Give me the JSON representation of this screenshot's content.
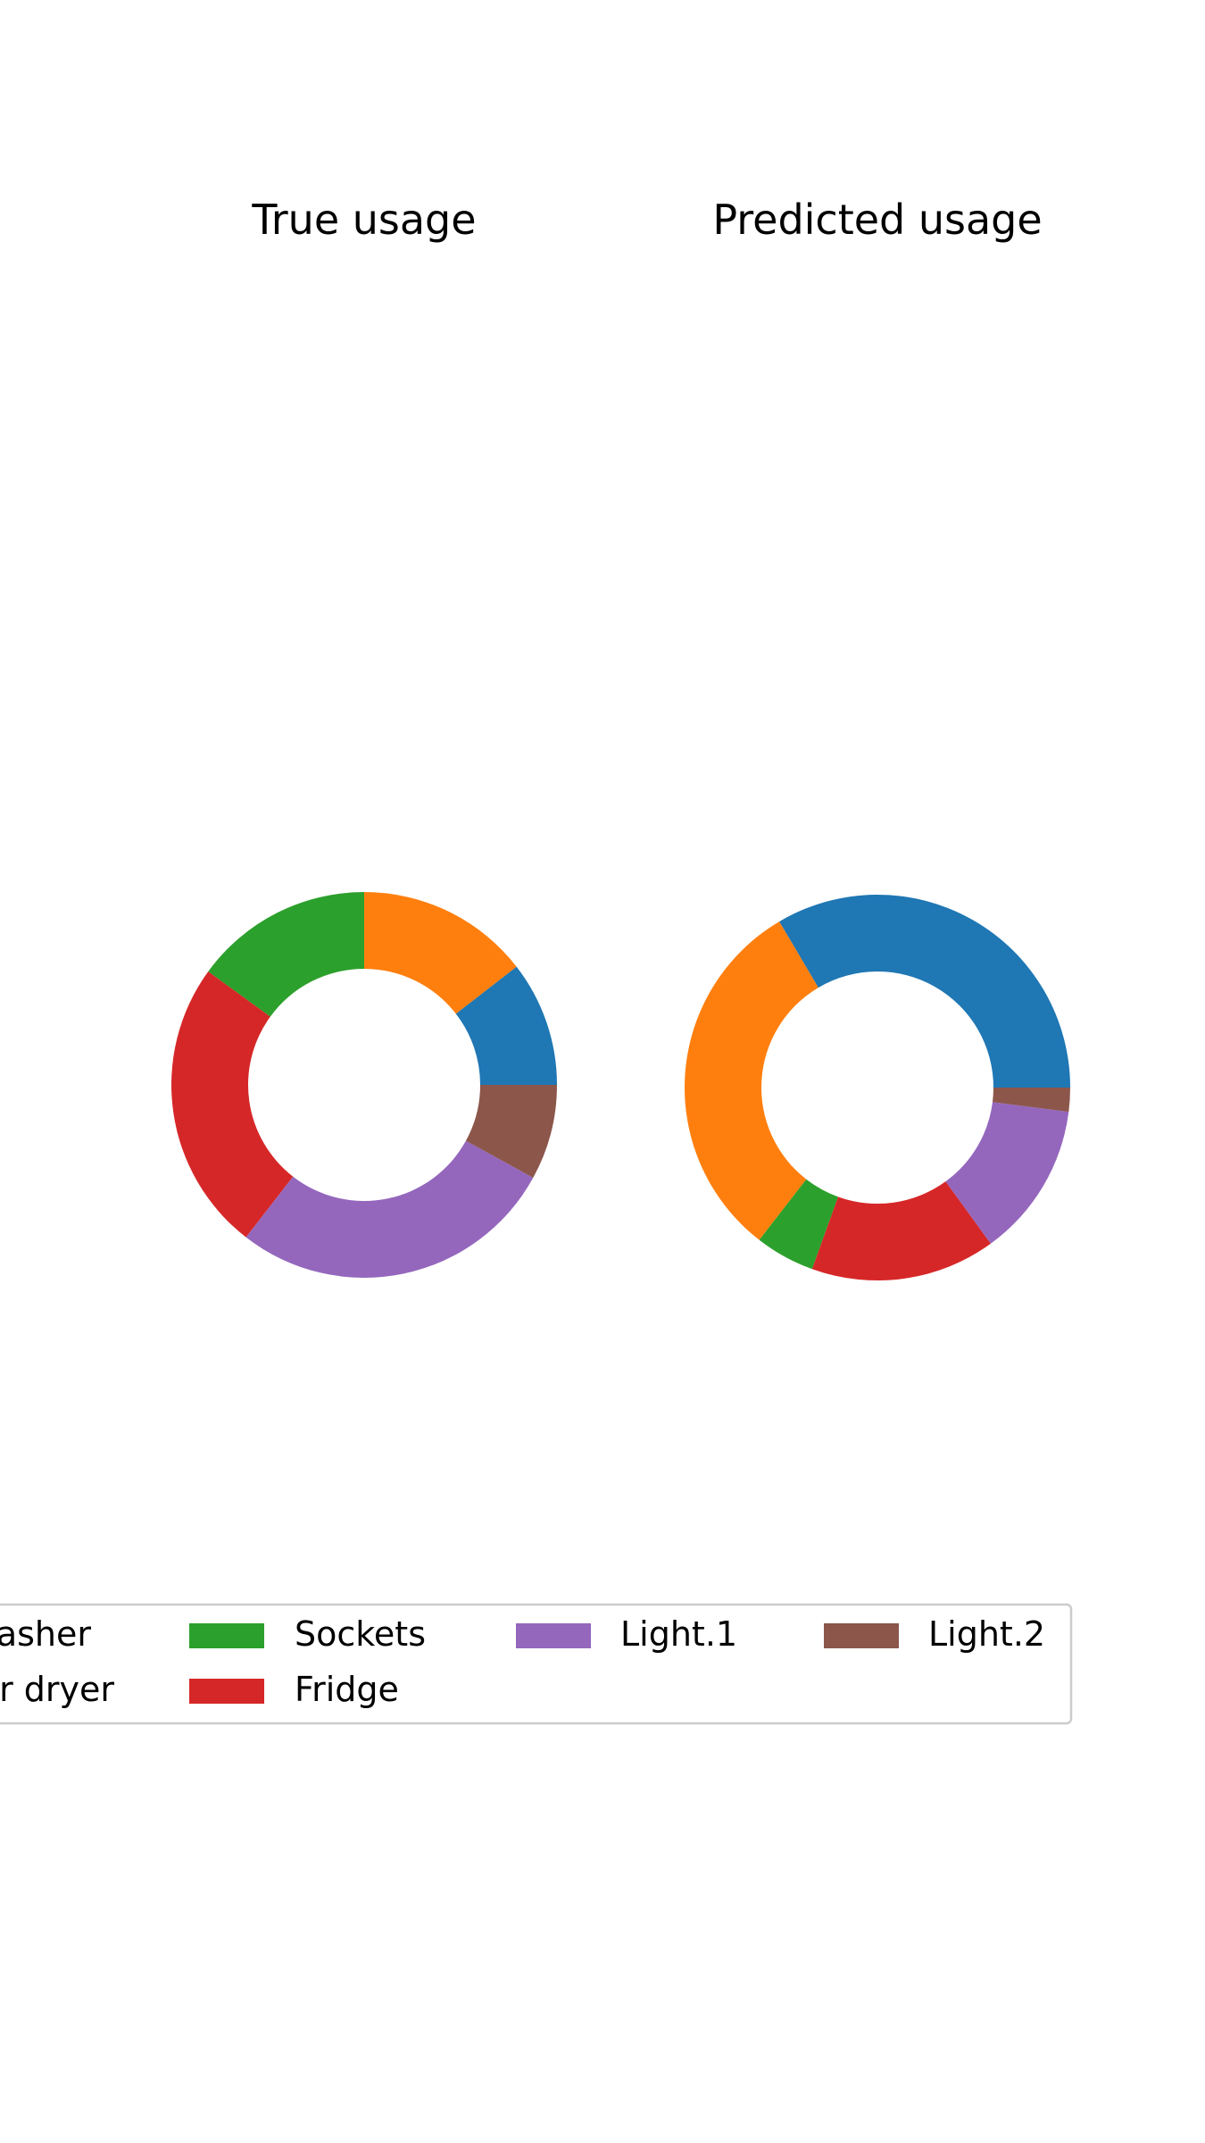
{
  "chart_data": [
    {
      "type": "pie",
      "donut": true,
      "title": "True usage",
      "categories": [
        "Dishwasher",
        "Washer dryer",
        "Sockets",
        "Fridge",
        "Light.1",
        "Light.2"
      ],
      "values": [
        10.5,
        14.5,
        15.0,
        24.5,
        27.5,
        8.0
      ],
      "start_angle_deg": 0,
      "direction": "counterclockwise"
    },
    {
      "type": "pie",
      "donut": true,
      "title": "Predicted usage",
      "categories": [
        "Dishwasher",
        "Washer dryer",
        "Sockets",
        "Fridge",
        "Light.1",
        "Light.2"
      ],
      "values": [
        33.5,
        31.0,
        5.0,
        15.5,
        13.0,
        2.0
      ],
      "start_angle_deg": 0,
      "direction": "counterclockwise"
    }
  ],
  "legend": {
    "placement": "bottom",
    "entries": [
      {
        "label": "asher",
        "color": "#1f77b4",
        "full_label": "Dishwasher"
      },
      {
        "label": "r dryer",
        "color": "#ff7f0e",
        "full_label": "Washer dryer"
      },
      {
        "label": "Sockets",
        "color": "#2ca02c"
      },
      {
        "label": "Fridge",
        "color": "#d62728"
      },
      {
        "label": "Light.1",
        "color": "#9467bd"
      },
      {
        "label": "Light.2",
        "color": "#8c564b"
      }
    ]
  },
  "colors": [
    "#1f77b4",
    "#ff7f0e",
    "#2ca02c",
    "#d62728",
    "#9467bd",
    "#8c564b"
  ]
}
